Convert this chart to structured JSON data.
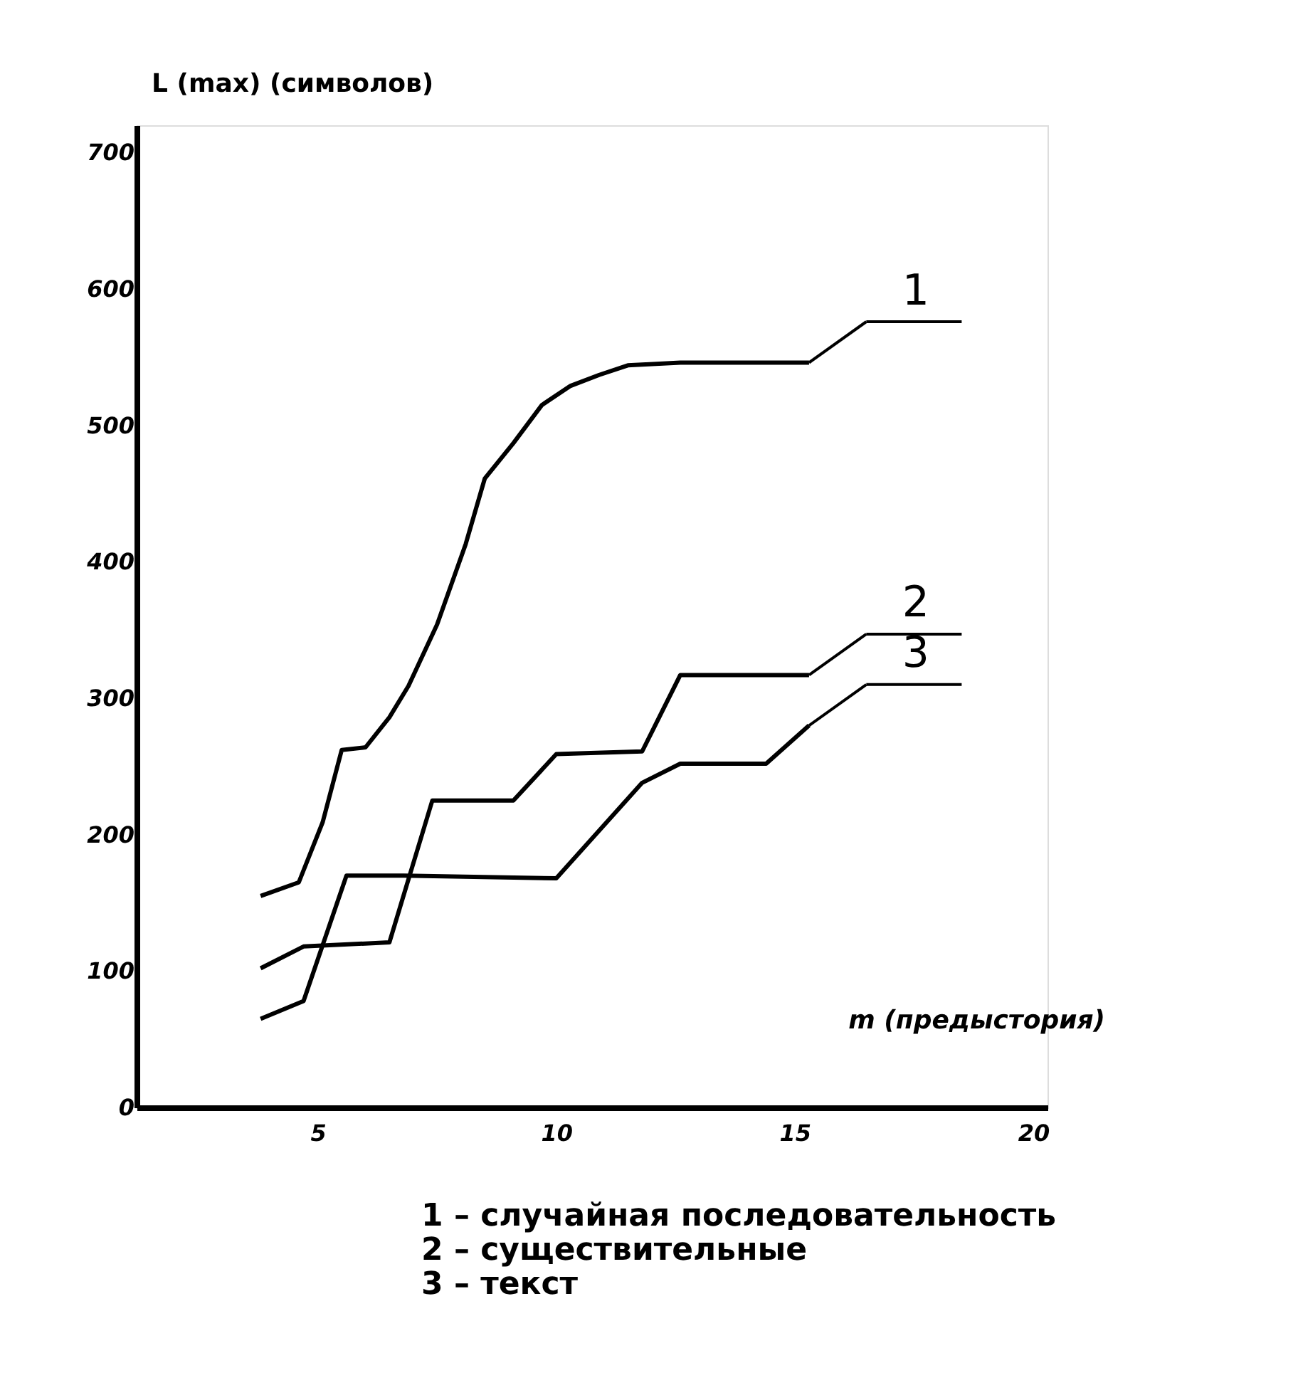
{
  "chart_data": {
    "type": "line",
    "xlabel": "m (предыстория)",
    "ylabel": "L (max) (символов)",
    "xlim": [
      1.2,
      20.3
    ],
    "xticks": [
      5,
      10,
      15,
      20
    ],
    "ylim": [
      0,
      720
    ],
    "yticks": [
      0,
      100,
      200,
      300,
      400,
      500,
      600,
      700
    ],
    "grid": false,
    "marker": "none",
    "line_style": "solid",
    "series": [
      {
        "name": "1",
        "color": "#000000",
        "x": [
          3.8,
          4.6,
          5.1,
          5.5,
          6.0,
          6.5,
          6.9,
          7.5,
          8.1,
          8.5,
          9.1,
          9.7,
          10.3,
          10.9,
          11.5,
          12.6,
          15.3
        ],
        "values": [
          155,
          165,
          209,
          262,
          264,
          286,
          309,
          354,
          413,
          461,
          487,
          515,
          529,
          537,
          544,
          546,
          546
        ]
      },
      {
        "name": "2",
        "color": "#000000",
        "x": [
          3.8,
          4.7,
          6.5,
          7.4,
          9.1,
          10.0,
          11.8,
          12.6,
          15.3
        ],
        "values": [
          102,
          118,
          121,
          225,
          225,
          259,
          261,
          317,
          317
        ]
      },
      {
        "name": "3",
        "color": "#000000",
        "x": [
          3.8,
          4.7,
          5.6,
          6.8,
          10.0,
          11.8,
          12.6,
          14.4,
          15.3
        ],
        "values": [
          65,
          78,
          170,
          170,
          168,
          238,
          252,
          252,
          280
        ]
      }
    ],
    "annotations": [
      "1 – случайная последовательность",
      "2 – существительные",
      "3 – текст"
    ]
  }
}
